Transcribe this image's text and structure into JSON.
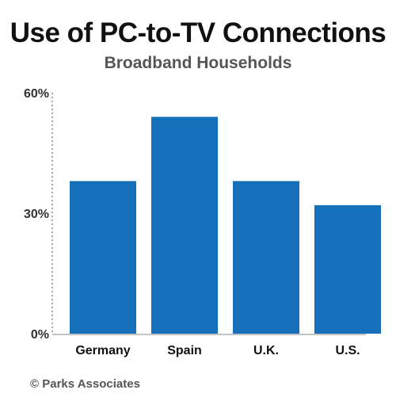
{
  "chart_data": {
    "type": "bar",
    "title": "Use of PC-to-TV Connections",
    "subtitle": "Broadband Households",
    "categories": [
      "Germany",
      "Spain",
      "U.K.",
      "U.S."
    ],
    "values": [
      38,
      54,
      38,
      32
    ],
    "unit": "%",
    "ylim": [
      0,
      60
    ],
    "yticks": [
      {
        "value": 0,
        "label": "0%"
      },
      {
        "value": 30,
        "label": "30%"
      },
      {
        "value": 60,
        "label": "60%"
      }
    ],
    "grid": false,
    "bar_color": "#1570b9",
    "axis_color": "#888888"
  },
  "source": "© Parks Associates"
}
